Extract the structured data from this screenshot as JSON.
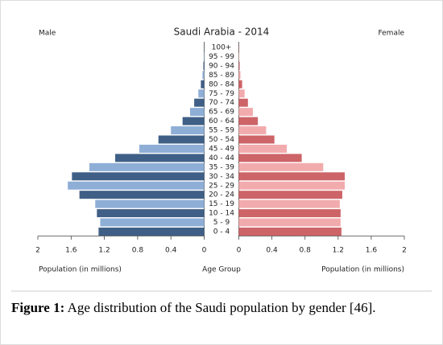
{
  "chart_data": {
    "type": "population_pyramid",
    "title": "Saudi Arabia - 2014",
    "left_label": "Male",
    "right_label": "Female",
    "categories": [
      "0 - 4",
      "5 - 9",
      "10 - 14",
      "15 - 19",
      "20 - 24",
      "25 - 29",
      "30 - 34",
      "35 - 39",
      "40 - 44",
      "45 - 49",
      "50 - 54",
      "55 - 59",
      "60 - 64",
      "65 - 69",
      "70 - 74",
      "75 - 79",
      "80 - 84",
      "85 - 89",
      "90 - 94",
      "95 - 99",
      "100+"
    ],
    "series": [
      {
        "name": "Male",
        "colors": [
          "#3f5f86",
          "#8eaed6"
        ],
        "values": [
          1.27,
          1.25,
          1.29,
          1.31,
          1.5,
          1.64,
          1.59,
          1.38,
          1.07,
          0.78,
          0.55,
          0.4,
          0.26,
          0.17,
          0.12,
          0.07,
          0.04,
          0.02,
          0.01,
          0.005,
          0.002
        ]
      },
      {
        "name": "Female",
        "colors": [
          "#cd6468",
          "#f2abad"
        ],
        "values": [
          1.24,
          1.23,
          1.23,
          1.22,
          1.25,
          1.28,
          1.28,
          1.02,
          0.76,
          0.58,
          0.43,
          0.33,
          0.23,
          0.17,
          0.11,
          0.07,
          0.04,
          0.02,
          0.01,
          0.005,
          0.002
        ]
      }
    ],
    "xlim": [
      0,
      2
    ],
    "xticks": [
      0,
      0.4,
      0.8,
      1.2,
      1.6,
      2
    ],
    "xlabel_left": "Population (in millions)",
    "center_label": "Age Group",
    "xlabel_right": "Population (in millions)"
  },
  "caption": {
    "label": "Figure 1:",
    "text": "Age distribution of the Saudi population by gender [46]."
  }
}
